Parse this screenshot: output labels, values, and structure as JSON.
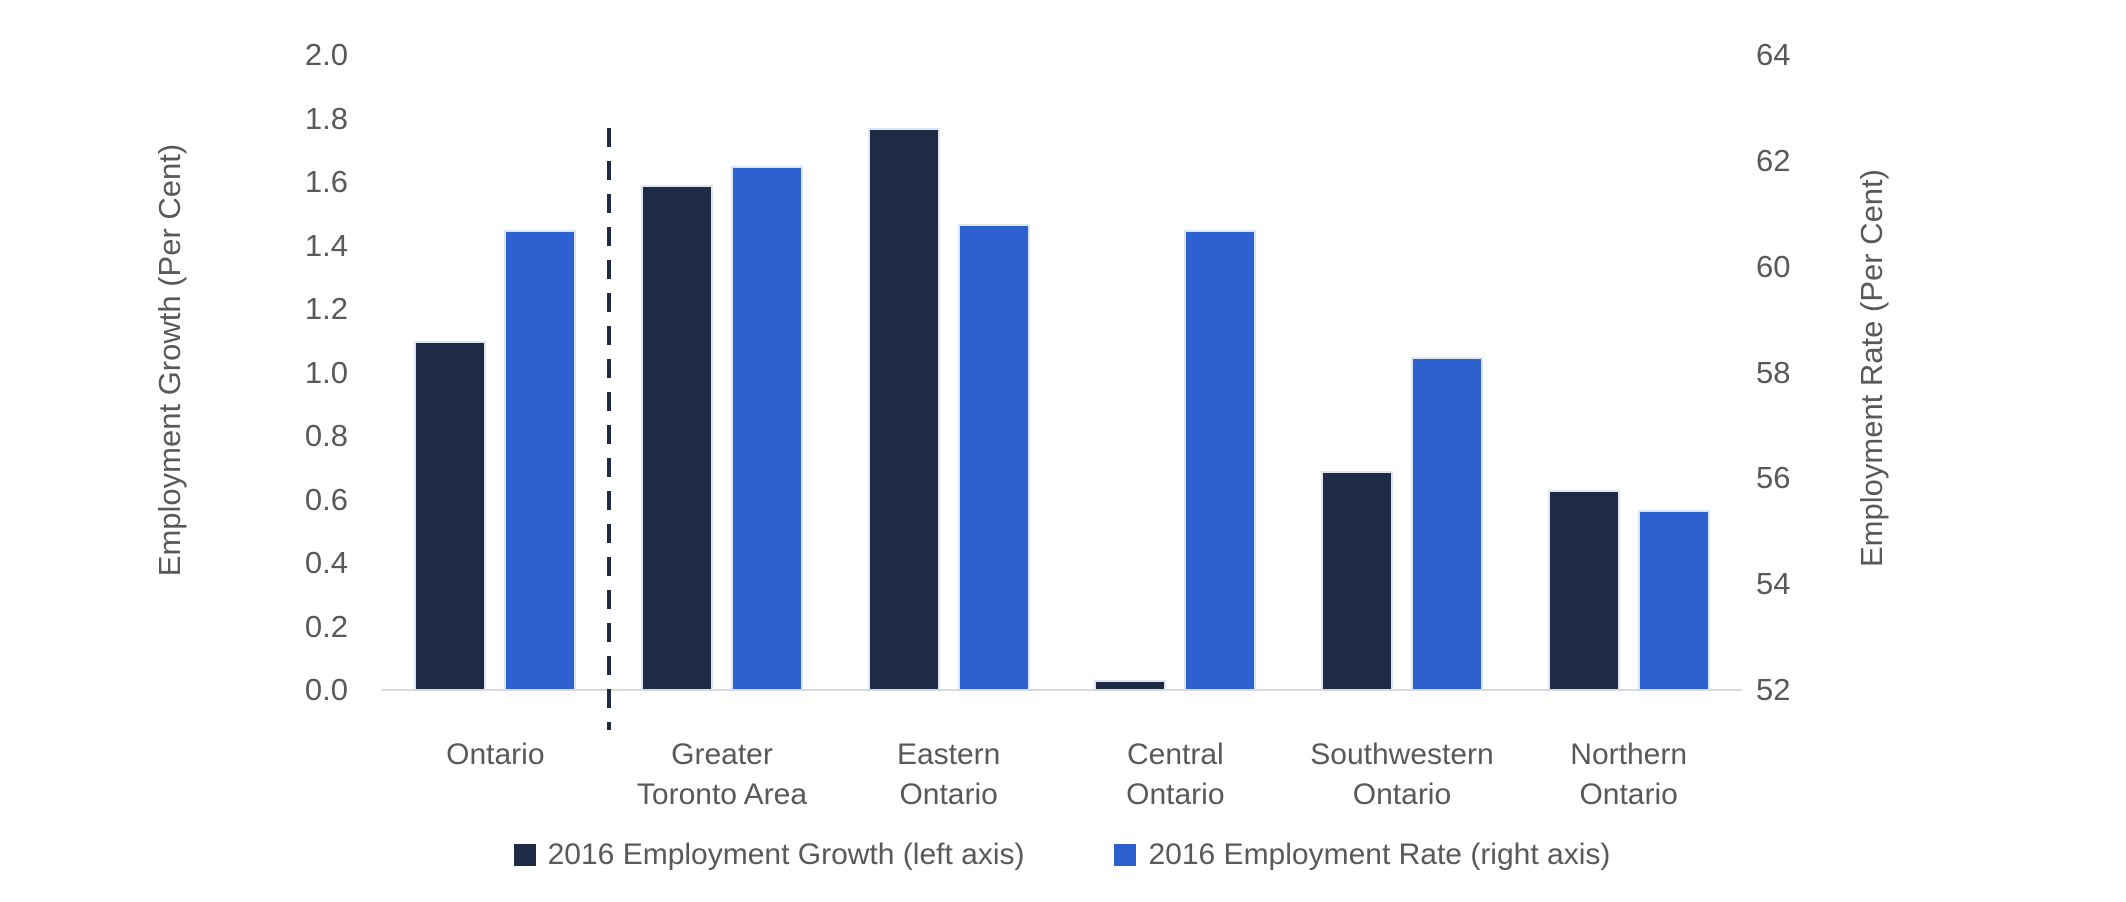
{
  "chart_data": {
    "type": "bar",
    "title": "",
    "categories": [
      "Ontario",
      "Greater Toronto Area",
      "Eastern Ontario",
      "Central Ontario",
      "Southwestern Ontario",
      "Northern Ontario"
    ],
    "category_lines": [
      [
        "Ontario"
      ],
      [
        "Greater",
        "Toronto Area"
      ],
      [
        "Eastern",
        "Ontario"
      ],
      [
        "Central",
        "Ontario"
      ],
      [
        "Southwestern",
        "Ontario"
      ],
      [
        "Northern",
        "Ontario"
      ]
    ],
    "series": [
      {
        "name": "2016 Employment Growth (left axis)",
        "axis": "left",
        "color": "#1F2A44",
        "values": [
          1.1,
          1.59,
          1.77,
          0.03,
          0.69,
          0.63
        ]
      },
      {
        "name": "2016 Employment Rate (right axis)",
        "axis": "right",
        "color": "#2B60CE",
        "values": [
          60.7,
          61.9,
          60.8,
          60.7,
          58.3,
          55.4
        ]
      }
    ],
    "left_axis": {
      "label": "Employment Growth (Per Cent)",
      "min": 0,
      "max": 2,
      "step": 0.2,
      "decimals": 1
    },
    "right_axis": {
      "label": "Employment Rate (Per Cent)",
      "min": 52,
      "max": 64,
      "step": 2,
      "decimals": 0
    },
    "divider_after_index": 0,
    "legend_position": "bottom",
    "grid": "none",
    "background": "#FFFFFF",
    "colors": {
      "text": "#595959",
      "axis_line": "#D9D9D9",
      "divider": "#1F2A44"
    }
  }
}
